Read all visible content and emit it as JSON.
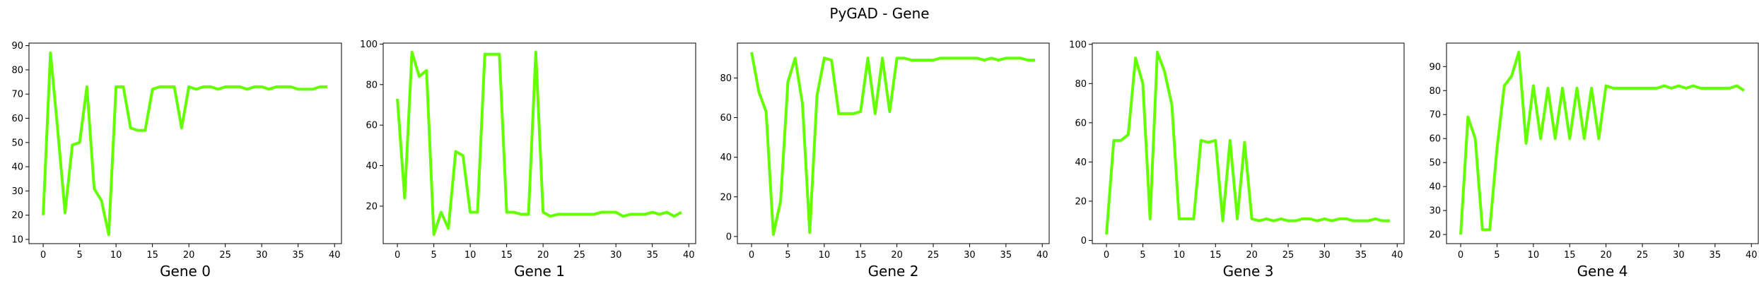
{
  "figure": {
    "suptitle": "PyGAD - Gene"
  },
  "chart_data": [
    {
      "type": "line",
      "title": "",
      "xlabel": "Gene 0",
      "ylabel": "",
      "xlim": [
        -1.95,
        40.95
      ],
      "ylim": [
        8.25,
        91.05
      ],
      "xticks": [
        0,
        5,
        10,
        15,
        20,
        25,
        30,
        35,
        40
      ],
      "yticks": [
        10,
        20,
        30,
        40,
        50,
        60,
        70,
        80,
        90
      ],
      "grid": false,
      "color": "#64ff00",
      "series": [
        {
          "x": [
            0,
            1,
            2,
            3,
            4,
            5,
            6,
            7,
            8,
            9,
            10,
            11,
            12,
            13,
            14,
            15,
            16,
            17,
            18,
            19,
            20,
            21,
            22,
            23,
            24,
            25,
            26,
            27,
            28,
            29,
            30,
            31,
            32,
            33,
            34,
            35,
            36,
            37,
            38,
            39
          ],
          "values": [
            20,
            87,
            55,
            21,
            49,
            50,
            73,
            31,
            26,
            12,
            73,
            73,
            56,
            55,
            55,
            72,
            73,
            73,
            73,
            56,
            73,
            72,
            73,
            73,
            72,
            73,
            73,
            73,
            72,
            73,
            73,
            72,
            73,
            73,
            73,
            72,
            72,
            72,
            73,
            73
          ]
        }
      ]
    },
    {
      "type": "line",
      "title": "",
      "xlabel": "Gene 1",
      "ylabel": "",
      "xlim": [
        -1.95,
        40.95
      ],
      "ylim": [
        1.5,
        100.5
      ],
      "xticks": [
        0,
        5,
        10,
        15,
        20,
        25,
        30,
        35,
        40
      ],
      "yticks": [
        20,
        40,
        60,
        80,
        100
      ],
      "grid": false,
      "color": "#64ff00",
      "series": [
        {
          "x": [
            0,
            1,
            2,
            3,
            4,
            5,
            6,
            7,
            8,
            9,
            10,
            11,
            12,
            13,
            14,
            15,
            16,
            17,
            18,
            19,
            20,
            21,
            22,
            23,
            24,
            25,
            26,
            27,
            28,
            29,
            30,
            31,
            32,
            33,
            34,
            35,
            36,
            37,
            38,
            39
          ],
          "values": [
            73,
            24,
            96,
            84,
            87,
            6,
            17,
            9,
            47,
            45,
            17,
            17,
            95,
            95,
            95,
            17,
            17,
            16,
            16,
            96,
            17,
            15,
            16,
            16,
            16,
            16,
            16,
            16,
            17,
            17,
            17,
            15,
            16,
            16,
            16,
            17,
            16,
            17,
            15,
            17
          ]
        }
      ]
    },
    {
      "type": "line",
      "title": "",
      "xlabel": "Gene 2",
      "ylabel": "",
      "xlim": [
        -1.95,
        40.95
      ],
      "ylim": [
        -3.6,
        97.6
      ],
      "xticks": [
        0,
        5,
        10,
        15,
        20,
        25,
        30,
        35,
        40
      ],
      "yticks": [
        0,
        20,
        40,
        60,
        80
      ],
      "grid": false,
      "color": "#64ff00",
      "series": [
        {
          "x": [
            0,
            1,
            2,
            3,
            4,
            5,
            6,
            7,
            8,
            9,
            10,
            11,
            12,
            13,
            14,
            15,
            16,
            17,
            18,
            19,
            20,
            21,
            22,
            23,
            24,
            25,
            26,
            27,
            28,
            29,
            30,
            31,
            32,
            33,
            34,
            35,
            36,
            37,
            38,
            39
          ],
          "values": [
            93,
            73,
            63,
            1,
            18,
            78,
            90,
            67,
            2,
            71,
            90,
            89,
            62,
            62,
            62,
            63,
            90,
            62,
            90,
            63,
            90,
            90,
            89,
            89,
            89,
            89,
            90,
            90,
            90,
            90,
            90,
            90,
            89,
            90,
            89,
            90,
            90,
            90,
            89,
            89
          ]
        }
      ]
    },
    {
      "type": "line",
      "title": "",
      "xlabel": "Gene 3",
      "ylabel": "",
      "xlim": [
        -1.95,
        40.95
      ],
      "ylim": [
        -1.65,
        100.65
      ],
      "xticks": [
        0,
        5,
        10,
        15,
        20,
        25,
        30,
        35,
        40
      ],
      "yticks": [
        0,
        20,
        40,
        60,
        80,
        100
      ],
      "grid": false,
      "color": "#64ff00",
      "series": [
        {
          "x": [
            0,
            1,
            2,
            3,
            4,
            5,
            6,
            7,
            8,
            9,
            10,
            11,
            12,
            13,
            14,
            15,
            16,
            17,
            18,
            19,
            20,
            21,
            22,
            23,
            24,
            25,
            26,
            27,
            28,
            29,
            30,
            31,
            32,
            33,
            34,
            35,
            36,
            37,
            38,
            39
          ],
          "values": [
            3,
            51,
            51,
            54,
            93,
            80,
            11,
            96,
            86,
            69,
            11,
            11,
            11,
            51,
            50,
            51,
            10,
            51,
            11,
            50,
            11,
            10,
            11,
            10,
            11,
            10,
            10,
            11,
            11,
            10,
            11,
            10,
            11,
            11,
            10,
            10,
            10,
            11,
            10,
            10
          ]
        }
      ]
    },
    {
      "type": "line",
      "title": "",
      "xlabel": "Gene 4",
      "ylabel": "",
      "xlim": [
        -1.95,
        40.95
      ],
      "ylim": [
        16.2,
        99.8
      ],
      "xticks": [
        0,
        5,
        10,
        15,
        20,
        25,
        30,
        35,
        40
      ],
      "yticks": [
        20,
        30,
        40,
        50,
        60,
        70,
        80,
        90
      ],
      "grid": false,
      "color": "#64ff00",
      "series": [
        {
          "x": [
            0,
            1,
            2,
            3,
            4,
            5,
            6,
            7,
            8,
            9,
            10,
            11,
            12,
            13,
            14,
            15,
            16,
            17,
            18,
            19,
            20,
            21,
            22,
            23,
            24,
            25,
            26,
            27,
            28,
            29,
            30,
            31,
            32,
            33,
            34,
            35,
            36,
            37,
            38,
            39
          ],
          "values": [
            20,
            69,
            60,
            22,
            22,
            56,
            82,
            86,
            96,
            58,
            82,
            60,
            81,
            60,
            81,
            60,
            81,
            60,
            81,
            60,
            82,
            81,
            81,
            81,
            81,
            81,
            81,
            81,
            82,
            81,
            82,
            81,
            82,
            81,
            81,
            81,
            81,
            81,
            82,
            80
          ]
        }
      ]
    }
  ]
}
